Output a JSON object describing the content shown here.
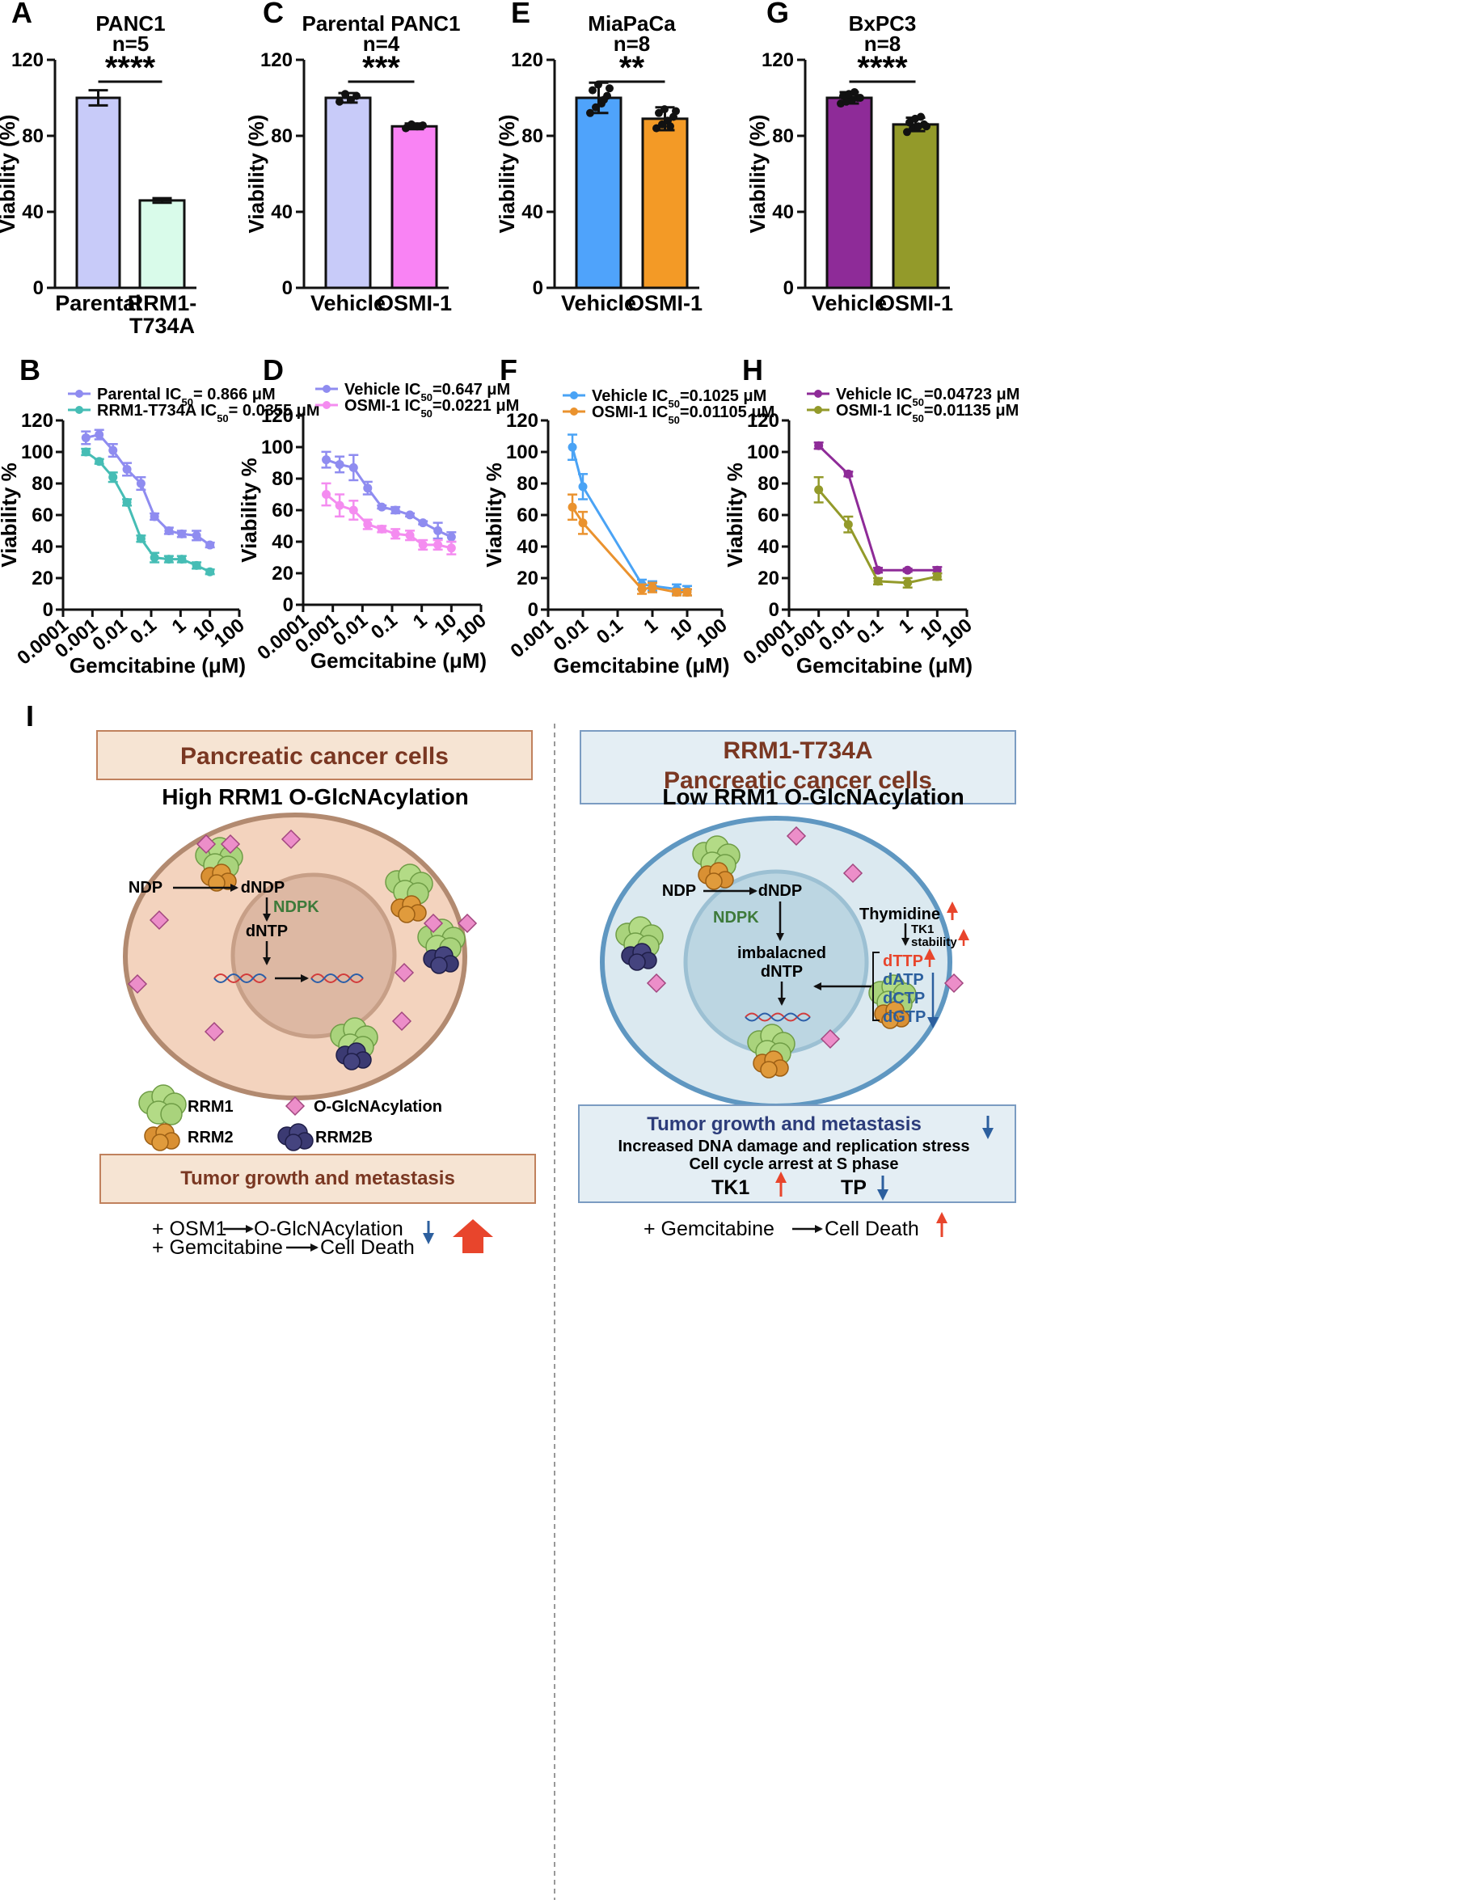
{
  "panels": {
    "A": {
      "letter": "A"
    },
    "B": {
      "letter": "B"
    },
    "C": {
      "letter": "C"
    },
    "D": {
      "letter": "D"
    },
    "E": {
      "letter": "E"
    },
    "F": {
      "letter": "F"
    },
    "G": {
      "letter": "G"
    },
    "H": {
      "letter": "H"
    },
    "I": {
      "letter": "I"
    }
  },
  "chart_data": [
    {
      "id": "A",
      "type": "bar",
      "title": "PANC1",
      "subtitle": "n=5",
      "categories": [
        "Parental",
        "RRM1-T734A"
      ],
      "category_lines": [
        [
          "Parental"
        ],
        [
          "RRM1-",
          "T734A"
        ]
      ],
      "values": [
        100,
        46
      ],
      "errors": [
        4,
        1.2
      ],
      "colors": [
        "#c8cbf9",
        "#d9fbea"
      ],
      "ylabel": "Viability (%)",
      "ylim": [
        0,
        120
      ],
      "yticks": [
        "0",
        "40",
        "80",
        "120"
      ],
      "significance": "****",
      "points": []
    },
    {
      "id": "C",
      "type": "bar",
      "title": "Parental PANC1",
      "subtitle": "n=4",
      "categories": [
        "Vehicle",
        "OSMI-1"
      ],
      "category_lines": [
        [
          "Vehicle"
        ],
        [
          "OSMI-1"
        ]
      ],
      "values": [
        100,
        85
      ],
      "errors": [
        2.5,
        1.5
      ],
      "colors": [
        "#c8cbf9",
        "#f983f4"
      ],
      "ylabel": "Viability (%)",
      "ylim": [
        0,
        120
      ],
      "yticks": [
        "0",
        "40",
        "80",
        "120"
      ],
      "significance": "***",
      "points": [
        [
          98,
          102,
          99,
          101
        ],
        [
          84,
          86,
          85,
          85.5
        ]
      ]
    },
    {
      "id": "E",
      "type": "bar",
      "title": "MiaPaCa",
      "subtitle": "n=8",
      "categories": [
        "Vehicle",
        "OSMI-1"
      ],
      "category_lines": [
        [
          "Vehicle"
        ],
        [
          "OSMI-1"
        ]
      ],
      "values": [
        100,
        89
      ],
      "errors": [
        8,
        6
      ],
      "colors": [
        "#4fa3fb",
        "#f39a26"
      ],
      "ylabel": "Viability (%)",
      "ylim": [
        0,
        120
      ],
      "yticks": [
        "0",
        "40",
        "80",
        "120"
      ],
      "significance": "**",
      "points": [
        [
          92,
          95,
          97,
          101,
          104,
          107,
          99,
          105
        ],
        [
          84,
          86,
          88,
          90,
          92,
          94,
          85,
          93
        ]
      ]
    },
    {
      "id": "G",
      "type": "bar",
      "title": "BxPC3",
      "subtitle": "n=8",
      "categories": [
        "Vehicle",
        "OSMI-1"
      ],
      "category_lines": [
        [
          "Vehicle"
        ],
        [
          "OSMI-1"
        ]
      ],
      "values": [
        100,
        86
      ],
      "errors": [
        3,
        3.5
      ],
      "colors": [
        "#8e2b98",
        "#939a2a"
      ],
      "ylabel": "Viability (%)",
      "ylim": [
        0,
        120
      ],
      "yticks": [
        "0",
        "40",
        "80",
        "120"
      ],
      "significance": "****",
      "points": [
        [
          97,
          98,
          99,
          100,
          101,
          102,
          103,
          100
        ],
        [
          82,
          84,
          85,
          86,
          87,
          89,
          90,
          85
        ]
      ]
    },
    {
      "id": "B",
      "type": "line",
      "xscale": "log",
      "xlabel": "Gemcitabine (μM)",
      "ylabel": "Viability %",
      "xlim": [
        0.0001,
        100
      ],
      "ylim": [
        0,
        120
      ],
      "xticks": [
        "0.0001",
        "0.001",
        "0.01",
        "0.1",
        "1",
        "10",
        "100"
      ],
      "yticks": [
        "0",
        "20",
        "40",
        "60",
        "80",
        "100",
        "120"
      ],
      "series": [
        {
          "name": "Parental",
          "ic50": "IC50= 0.866 μM",
          "color": "#8f8cf0",
          "x": [
            0.0006,
            0.0017,
            0.005,
            0.015,
            0.045,
            0.13,
            0.4,
            1.1,
            3.5,
            10
          ],
          "y": [
            109,
            111,
            101,
            89,
            80,
            59,
            50,
            48,
            47,
            41
          ],
          "err": [
            4,
            3,
            4,
            4,
            4,
            2,
            2,
            2,
            3,
            1.5
          ]
        },
        {
          "name": "RRM1-T734A",
          "ic50": "IC50= 0.0355 μM",
          "color": "#46bdb5",
          "x": [
            0.0006,
            0.0017,
            0.005,
            0.015,
            0.045,
            0.13,
            0.4,
            1.1,
            3.5,
            10
          ],
          "y": [
            100,
            94,
            84,
            68,
            45,
            33,
            32,
            32,
            28,
            24
          ],
          "err": [
            2,
            1.5,
            3,
            2,
            2,
            3,
            2,
            2,
            2,
            1.5
          ]
        }
      ]
    },
    {
      "id": "D",
      "type": "line",
      "xscale": "log",
      "xlabel": "Gemcitabine (μM)",
      "ylabel": "Viability %",
      "xlim": [
        0.0001,
        100
      ],
      "ylim": [
        0,
        120
      ],
      "xticks": [
        "0.0001",
        "0.001",
        "0.01",
        "0.1",
        "1",
        "10",
        "100"
      ],
      "yticks": [
        "0",
        "20",
        "40",
        "60",
        "80",
        "100",
        "120"
      ],
      "series": [
        {
          "name": "Vehicle",
          "ic50": "IC50=0.647 μM",
          "color": "#8f8cf0",
          "x": [
            0.0006,
            0.0017,
            0.005,
            0.015,
            0.045,
            0.13,
            0.4,
            1.1,
            3.5,
            10
          ],
          "y": [
            92,
            89,
            87,
            74,
            62,
            60,
            57,
            52,
            47,
            43
          ],
          "err": [
            5,
            5,
            8,
            4,
            1,
            2,
            1,
            1,
            5,
            3
          ]
        },
        {
          "name": "OSMI-1",
          "ic50": "IC50=0.0221 μM",
          "color": "#f48cf0",
          "x": [
            0.0006,
            0.0017,
            0.005,
            0.015,
            0.045,
            0.13,
            0.4,
            1.1,
            3.5,
            10
          ],
          "y": [
            70,
            63,
            60,
            51,
            48,
            45,
            44,
            38,
            38,
            36
          ],
          "err": [
            7,
            7,
            6,
            3,
            2,
            3,
            3,
            3,
            3,
            4
          ]
        }
      ]
    },
    {
      "id": "F",
      "type": "line",
      "xscale": "log",
      "xlabel": "Gemcitabine (μM)",
      "ylabel": "Viability %",
      "xlim": [
        0.001,
        100
      ],
      "ylim": [
        0,
        120
      ],
      "xticks": [
        "0.001",
        "0.01",
        "0.1",
        "1",
        "10",
        "100"
      ],
      "yticks": [
        "0",
        "20",
        "40",
        "60",
        "80",
        "100",
        "120"
      ],
      "series": [
        {
          "name": "Vehicle",
          "ic50": "IC50=0.1025 μM",
          "color": "#4aa3f5",
          "x": [
            0.005,
            0.01,
            0.5,
            1,
            5,
            10
          ],
          "y": [
            103,
            78,
            16,
            15,
            13,
            12
          ],
          "err": [
            8,
            8,
            3,
            3,
            3,
            3
          ]
        },
        {
          "name": "OSMI-1",
          "ic50": "IC50=0.01105 μM",
          "color": "#ea922e",
          "x": [
            0.005,
            0.01,
            0.5,
            1,
            5,
            10
          ],
          "y": [
            65,
            55,
            13,
            14,
            11,
            11
          ],
          "err": [
            8,
            7,
            3,
            3,
            2,
            2
          ]
        }
      ]
    },
    {
      "id": "H",
      "type": "line",
      "xscale": "log",
      "xlabel": "Gemcitabine (μM)",
      "ylabel": "Viability %",
      "xlim": [
        0.0001,
        100
      ],
      "ylim": [
        0,
        120
      ],
      "xticks": [
        "0.0001",
        "0.001",
        "0.01",
        "0.1",
        "1",
        "10",
        "100"
      ],
      "yticks": [
        "0",
        "20",
        "40",
        "60",
        "80",
        "100",
        "120"
      ],
      "series": [
        {
          "name": "Vehicle",
          "ic50": "IC50=0.04723 μM",
          "color": "#8e2b98",
          "x": [
            0.001,
            0.01,
            0.1,
            1,
            10
          ],
          "y": [
            104,
            86,
            25,
            25,
            25
          ],
          "err": [
            2,
            1.5,
            1.5,
            1,
            2
          ]
        },
        {
          "name": "OSMI-1",
          "ic50": "IC50=0.01135 μM",
          "color": "#939a2a",
          "x": [
            0.001,
            0.01,
            0.1,
            1,
            10
          ],
          "y": [
            76,
            54,
            18,
            17,
            21
          ],
          "err": [
            8,
            5,
            2,
            3,
            2
          ]
        }
      ]
    }
  ],
  "diagram": {
    "left": {
      "title": "Pancreatic cancer cells",
      "heading": "High RRM1 O-GlcNAcylation",
      "labels": {
        "ndp": "NDP",
        "dndp": "dNDP",
        "ndpk": "NDPK",
        "dntp": "dNTP"
      },
      "legend": {
        "rrm1": "RRM1",
        "oglc": "O-GlcNAcylation",
        "rrm2": "RRM2",
        "rrm2b": "RRM2B"
      },
      "outcome": "Tumor growth and metastasis",
      "note1": "+ OSM1",
      "note1b": "O-GlcNAcylation",
      "note2": "+ Gemcitabine",
      "note2b": "Cell Death"
    },
    "right": {
      "title1": "RRM1-T734A",
      "title2": "Pancreatic cancer cells",
      "heading": "Low RRM1 O-GlcNAcylation",
      "labels": {
        "ndp": "NDP",
        "dndp": "dNDP",
        "ndpk": "NDPK",
        "imb1": "imbalacned",
        "imb2": "dNTP",
        "thymidine": "Thymidine",
        "tk1": "TK1",
        "stability": "stability",
        "dttp": "dTTP",
        "datp": "dATP",
        "dctp": "dCTP",
        "dgtp": "dGTP"
      },
      "outcome_title": "Tumor growth and metastasis",
      "outcome_line1": "Increased DNA damage and replication stress",
      "outcome_line2": "Cell cycle arrest at S phase",
      "tk1": "TK1",
      "tp": "TP",
      "note1": "+ Gemcitabine",
      "note1b": "Cell Death"
    },
    "colors": {
      "up": "#e8452c",
      "down": "#2c5f9e",
      "ndpk": "#3d7a3a"
    }
  }
}
